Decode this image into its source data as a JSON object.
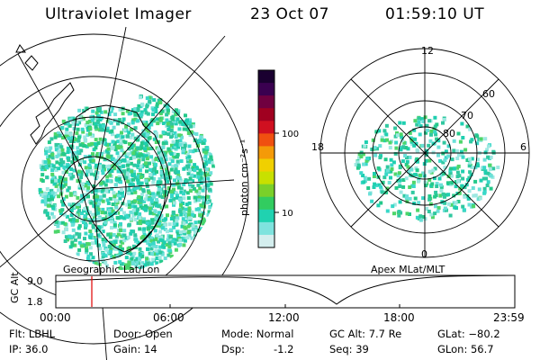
{
  "header": {
    "title": "Ultraviolet Imager",
    "date": "23 Oct 07",
    "time": "01:59:10 UT"
  },
  "colorbar": {
    "unit_label": "photon cm⁻²s⁻¹",
    "ticks": [
      "100",
      "10"
    ],
    "colors": [
      "#1a0030",
      "#3a0050",
      "#700040",
      "#a00020",
      "#d01020",
      "#f05010",
      "#f49a08",
      "#f0d000",
      "#c8e000",
      "#7ad02a",
      "#32cc60",
      "#20d2b0",
      "#7fe3de",
      "#d4eeee"
    ]
  },
  "left_map": {
    "caption": "Geographic Lat/Lon"
  },
  "right_map": {
    "caption": "Apex MLat/MLT",
    "mlt_labels": {
      "top": "12",
      "right": "6",
      "bottom": "0",
      "left": "18"
    },
    "lat_labels": [
      "60",
      "70",
      "80"
    ]
  },
  "altitude_panel": {
    "ylabel": "GC Alt",
    "yticks": [
      "9.0",
      "1.8"
    ],
    "xticks": [
      "00:00",
      "06:00",
      "12:00",
      "18:00",
      "23:59"
    ],
    "marker_time": "01:59"
  },
  "info": {
    "flt": "Flt: LBHL",
    "ip": "IP: 36.0",
    "door": "Door: Open",
    "gain": "Gain: 14",
    "mode": "Mode: Normal",
    "dsp_label": "Dsp:",
    "dsp_value": "-1.2",
    "gc_alt": "GC Alt: 7.7 Re",
    "seq": "Seq: 39",
    "glat": "GLat: −80.2",
    "glon": "GLon: 56.7"
  }
}
